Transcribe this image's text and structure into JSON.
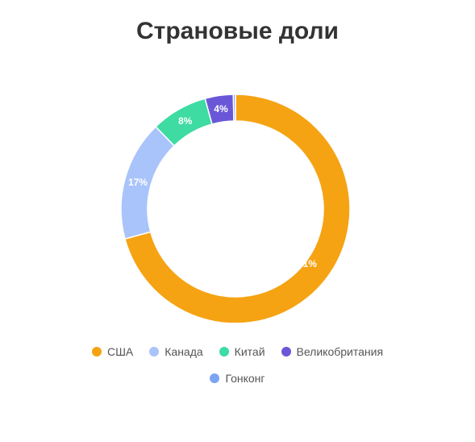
{
  "chart_data": {
    "type": "pie",
    "title": "Страновые доли",
    "donut": true,
    "start_angle_deg": 0,
    "direction": "clockwise",
    "legend_position": "bottom",
    "slices": [
      {
        "name": "США",
        "value": 71,
        "label": "71%",
        "color": "#F5A313"
      },
      {
        "name": "Канада",
        "value": 17,
        "label": "17%",
        "color": "#A9C4FA"
      },
      {
        "name": "Китай",
        "value": 8,
        "label": "8%",
        "color": "#3EDBA3"
      },
      {
        "name": "Великобритания",
        "value": 4,
        "label": "4%",
        "color": "#6A57D8"
      },
      {
        "name": "Гонконг",
        "value": 0.3,
        "label": "",
        "color": "#7BA4F3"
      }
    ]
  }
}
